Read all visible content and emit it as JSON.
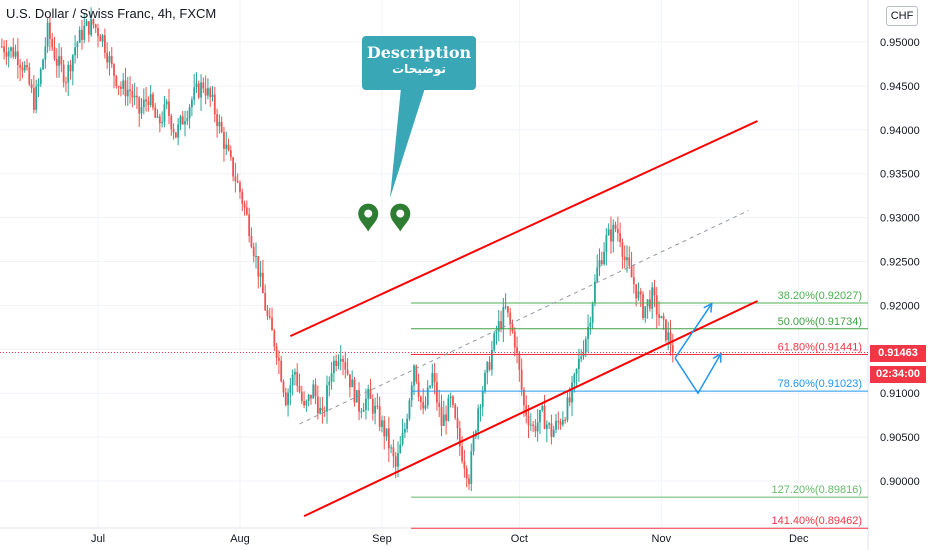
{
  "header": {
    "title": "U.S. Dollar / Swiss Franc, 4h, FXCM",
    "currency_button": "CHF"
  },
  "callout": {
    "title": "Description",
    "subtitle": "توضيحات",
    "color": "#3aa7b7"
  },
  "price_tag": {
    "value": "0.91463",
    "countdown": "02:34:00",
    "color": "#f23645"
  },
  "chart_data": {
    "type": "candlestick",
    "title": "U.S. Dollar / Swiss Franc, 4h, FXCM",
    "ylim": [
      0.896,
      0.954
    ],
    "y_ticks": [
      "0.95000",
      "0.94500",
      "0.94000",
      "0.93500",
      "0.93000",
      "0.92500",
      "0.92000",
      "0.91500",
      "0.91000",
      "0.90500",
      "0.90000"
    ],
    "y_tick_values": [
      0.95,
      0.945,
      0.94,
      0.935,
      0.93,
      0.925,
      0.92,
      0.915,
      0.91,
      0.905,
      0.9
    ],
    "x_ticks": [
      "Jul",
      "Aug",
      "Sep",
      "Oct",
      "Nov",
      "Dec"
    ],
    "x_tick_days": [
      0,
      31,
      62,
      92,
      123,
      153
    ],
    "grid": true,
    "colors": {
      "up": "#26a69a",
      "down": "#ef5350"
    },
    "price_path": [
      [
        -21,
        0.9495
      ],
      [
        -18,
        0.9488
      ],
      [
        -16,
        0.947
      ],
      [
        -14,
        0.9432
      ],
      [
        -13,
        0.945
      ],
      [
        -11,
        0.9512
      ],
      [
        -9,
        0.9478
      ],
      [
        -7,
        0.946
      ],
      [
        -5,
        0.9495
      ],
      [
        -3,
        0.9515
      ],
      [
        -1,
        0.952
      ],
      [
        1,
        0.9505
      ],
      [
        3,
        0.947
      ],
      [
        5,
        0.9448
      ],
      [
        7,
        0.9445
      ],
      [
        9,
        0.942
      ],
      [
        11,
        0.9438
      ],
      [
        13,
        0.9405
      ],
      [
        15,
        0.9425
      ],
      [
        17,
        0.9395
      ],
      [
        19,
        0.9418
      ],
      [
        21,
        0.944
      ],
      [
        23,
        0.9452
      ],
      [
        25,
        0.943
      ],
      [
        27,
        0.9395
      ],
      [
        29,
        0.936
      ],
      [
        31,
        0.933
      ],
      [
        33,
        0.929
      ],
      [
        35,
        0.924
      ],
      [
        37,
        0.9185
      ],
      [
        39,
        0.915
      ],
      [
        41,
        0.9095
      ],
      [
        43,
        0.9125
      ],
      [
        45,
        0.908
      ],
      [
        47,
        0.9105
      ],
      [
        49,
        0.907
      ],
      [
        51,
        0.913
      ],
      [
        53,
        0.915
      ],
      [
        55,
        0.9115
      ],
      [
        57,
        0.9085
      ],
      [
        59,
        0.9095
      ],
      [
        61,
        0.9075
      ],
      [
        63,
        0.905
      ],
      [
        65,
        0.9015
      ],
      [
        67,
        0.906
      ],
      [
        69,
        0.9135
      ],
      [
        71,
        0.9075
      ],
      [
        73,
        0.912
      ],
      [
        75,
        0.9065
      ],
      [
        77,
        0.909
      ],
      [
        79,
        0.904
      ],
      [
        81,
        0.9005
      ],
      [
        83,
        0.9085
      ],
      [
        85,
        0.9125
      ],
      [
        87,
        0.917
      ],
      [
        89,
        0.9195
      ],
      [
        91,
        0.916
      ],
      [
        93,
        0.9085
      ],
      [
        95,
        0.906
      ],
      [
        97,
        0.9075
      ],
      [
        99,
        0.9055
      ],
      [
        101,
        0.907
      ],
      [
        103,
        0.909
      ],
      [
        105,
        0.9135
      ],
      [
        107,
        0.9175
      ],
      [
        109,
        0.924
      ],
      [
        111,
        0.9275
      ],
      [
        113,
        0.9288
      ],
      [
        114,
        0.928
      ],
      [
        115,
        0.9252
      ],
      [
        117,
        0.9225
      ],
      [
        119,
        0.9195
      ],
      [
        121,
        0.921
      ],
      [
        123,
        0.918
      ],
      [
        125,
        0.9158
      ],
      [
        126,
        0.9146
      ]
    ],
    "last_price": 0.91463,
    "countdown": "02:34:00",
    "fibonacci": [
      {
        "label": "38.20%(0.92027)",
        "value": 0.92027,
        "color": "#4caf50"
      },
      {
        "label": "50.00%(0.91734)",
        "value": 0.91734,
        "color": "#43a047"
      },
      {
        "label": "61.80%(0.91441)",
        "value": 0.91441,
        "color": "#f23645"
      },
      {
        "label": "78.60%(0.91023)",
        "value": 0.91023,
        "color": "#2196f3"
      },
      {
        "label": "127.20%(0.89816)",
        "value": 0.89816,
        "color": "#66bb6a"
      },
      {
        "label": "141.40%(0.89462)",
        "value": 0.89462,
        "color": "#f23645"
      }
    ],
    "channel": {
      "upper": [
        [
          42,
          0.9165
        ],
        [
          144,
          0.941
        ]
      ],
      "lower": [
        [
          45,
          0.896
        ],
        [
          144,
          0.9205
        ]
      ],
      "mid": [
        [
          44,
          0.9065
        ],
        [
          142,
          0.9308
        ]
      ],
      "color": "#ff0000"
    },
    "projection_arrows": [
      [
        [
          126,
          0.914
        ],
        [
          134,
          0.9202
        ]
      ],
      [
        [
          126,
          0.914
        ],
        [
          131,
          0.91
        ],
        [
          136,
          0.9145
        ]
      ]
    ],
    "markers": [
      {
        "name": "map-pin-1",
        "x_day": 59,
        "y": 0.93
      },
      {
        "name": "map-pin-2",
        "x_day": 66,
        "y": 0.93
      }
    ]
  }
}
